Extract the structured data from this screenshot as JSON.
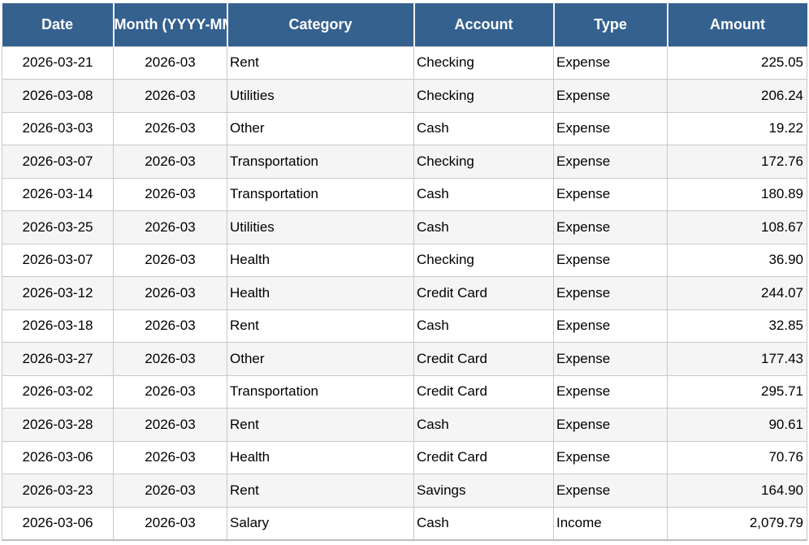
{
  "table": {
    "columns": [
      {
        "key": "date",
        "label": "Date"
      },
      {
        "key": "month",
        "label": "Month (YYYY-MM)"
      },
      {
        "key": "category",
        "label": "Category"
      },
      {
        "key": "account",
        "label": "Account"
      },
      {
        "key": "type",
        "label": "Type"
      },
      {
        "key": "amount",
        "label": "Amount"
      }
    ],
    "rows": [
      {
        "date": "2026-03-21",
        "month": "2026-03",
        "category": "Rent",
        "account": "Checking",
        "type": "Expense",
        "amount": "225.05"
      },
      {
        "date": "2026-03-08",
        "month": "2026-03",
        "category": "Utilities",
        "account": "Checking",
        "type": "Expense",
        "amount": "206.24"
      },
      {
        "date": "2026-03-03",
        "month": "2026-03",
        "category": "Other",
        "account": "Cash",
        "type": "Expense",
        "amount": "19.22"
      },
      {
        "date": "2026-03-07",
        "month": "2026-03",
        "category": "Transportation",
        "account": "Checking",
        "type": "Expense",
        "amount": "172.76"
      },
      {
        "date": "2026-03-14",
        "month": "2026-03",
        "category": "Transportation",
        "account": "Cash",
        "type": "Expense",
        "amount": "180.89"
      },
      {
        "date": "2026-03-25",
        "month": "2026-03",
        "category": "Utilities",
        "account": "Cash",
        "type": "Expense",
        "amount": "108.67"
      },
      {
        "date": "2026-03-07",
        "month": "2026-03",
        "category": "Health",
        "account": "Checking",
        "type": "Expense",
        "amount": "36.90"
      },
      {
        "date": "2026-03-12",
        "month": "2026-03",
        "category": "Health",
        "account": "Credit Card",
        "type": "Expense",
        "amount": "244.07"
      },
      {
        "date": "2026-03-18",
        "month": "2026-03",
        "category": "Rent",
        "account": "Cash",
        "type": "Expense",
        "amount": "32.85"
      },
      {
        "date": "2026-03-27",
        "month": "2026-03",
        "category": "Other",
        "account": "Credit Card",
        "type": "Expense",
        "amount": "177.43"
      },
      {
        "date": "2026-03-02",
        "month": "2026-03",
        "category": "Transportation",
        "account": "Credit Card",
        "type": "Expense",
        "amount": "295.71"
      },
      {
        "date": "2026-03-28",
        "month": "2026-03",
        "category": "Rent",
        "account": "Cash",
        "type": "Expense",
        "amount": "90.61"
      },
      {
        "date": "2026-03-06",
        "month": "2026-03",
        "category": "Health",
        "account": "Credit Card",
        "type": "Expense",
        "amount": "70.76"
      },
      {
        "date": "2026-03-23",
        "month": "2026-03",
        "category": "Rent",
        "account": "Savings",
        "type": "Expense",
        "amount": "164.90"
      },
      {
        "date": "2026-03-06",
        "month": "2026-03",
        "category": "Salary",
        "account": "Cash",
        "type": "Income",
        "amount": "2,079.79"
      }
    ]
  },
  "colors": {
    "header_bg": "#35618f",
    "header_text": "#ffffff",
    "row_bg": "#ffffff",
    "row_alt_bg": "#f5f5f5",
    "grid": "#c9c9c9",
    "text": "#000000"
  }
}
